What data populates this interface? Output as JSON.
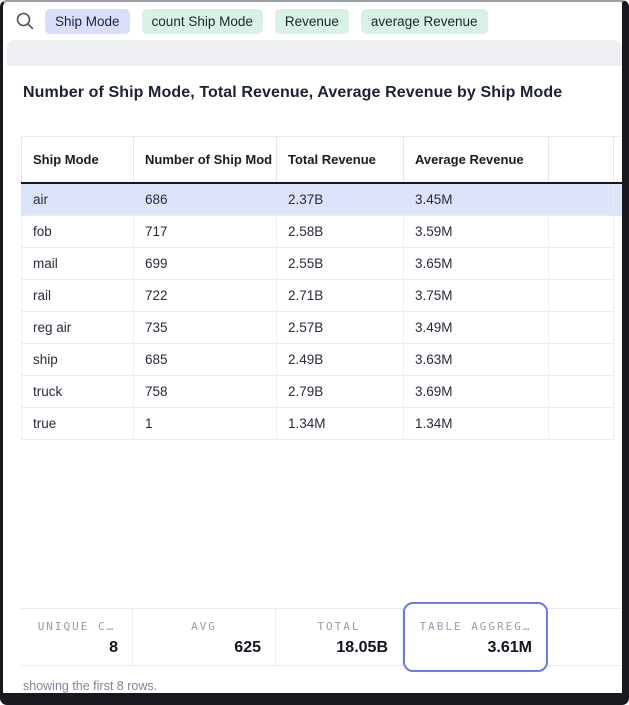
{
  "topbar": {
    "chips": [
      {
        "label": "Ship Mode",
        "kind": "dimension",
        "bg": "#d8dffc"
      },
      {
        "label": "count Ship Mode",
        "kind": "measure",
        "bg": "#d8f2e5"
      },
      {
        "label": "Revenue",
        "kind": "measure",
        "bg": "#d8f2e5"
      },
      {
        "label": "average Revenue",
        "kind": "measure",
        "bg": "#d8f2e5"
      }
    ]
  },
  "title": "Number of Ship Mode, Total Revenue, Average Revenue by Ship Mode",
  "table": {
    "columns": [
      "Ship Mode",
      "Number of Ship Mod",
      "Total Revenue",
      "Average Revenue",
      ""
    ],
    "rows": [
      [
        "air",
        "686",
        "2.37B",
        "3.45M"
      ],
      [
        "fob",
        "717",
        "2.58B",
        "3.59M"
      ],
      [
        "mail",
        "699",
        "2.55B",
        "3.65M"
      ],
      [
        "rail",
        "722",
        "2.71B",
        "3.75M"
      ],
      [
        "reg air",
        "735",
        "2.57B",
        "3.49M"
      ],
      [
        "ship",
        "685",
        "2.49B",
        "3.63M"
      ],
      [
        "truck",
        "758",
        "2.79B",
        "3.69M"
      ],
      [
        "true",
        "1",
        "1.34M",
        "1.34M"
      ]
    ],
    "selected_row_index": 0
  },
  "summary": {
    "stats": [
      {
        "label": "UNIQUE C…",
        "value": "8",
        "selected": false
      },
      {
        "label": "AVG",
        "value": "625",
        "selected": false
      },
      {
        "label": "TOTAL",
        "value": "18.05B",
        "selected": false
      },
      {
        "label": "TABLE AGGREG…",
        "value": "3.61M",
        "selected": true
      }
    ]
  },
  "footer_note": "showing the first 8 rows.",
  "colors": {
    "selection_border": "#6b7be8",
    "row_highlight": "#dbe4f9",
    "chip_dimension_bg": "#d8dffc",
    "chip_measure_bg": "#d8f2e5",
    "strip_bg": "#edeff2",
    "header_rule": "#14171e"
  }
}
